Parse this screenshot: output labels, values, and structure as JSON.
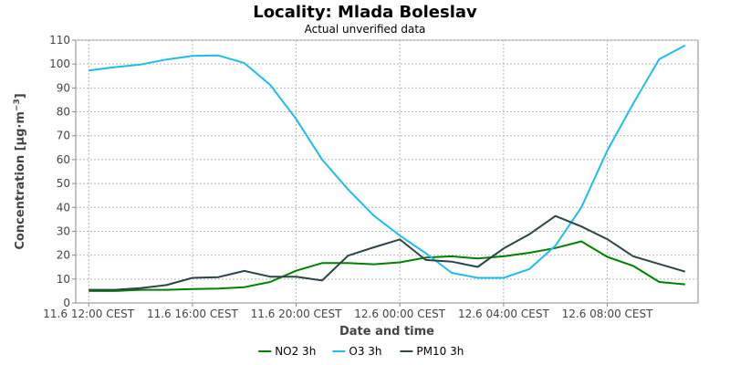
{
  "chart_data": {
    "type": "line",
    "title": "Locality: Mlada Boleslav",
    "subtitle": "Actual unverified data",
    "xlabel": "Date and time",
    "ylabel_main": "Concentration [µg·m",
    "ylabel_sup": "−3",
    "ylabel_end": "]",
    "ylim": [
      0,
      110
    ],
    "yticks": [
      0,
      10,
      20,
      30,
      40,
      50,
      60,
      70,
      80,
      90,
      100,
      110
    ],
    "xlim": [
      11.5,
      35.5
    ],
    "x_hours": [
      12,
      13,
      14,
      15,
      16,
      17,
      18,
      19,
      20,
      21,
      22,
      23,
      24,
      25,
      26,
      27,
      28,
      29,
      30,
      31,
      32,
      33,
      34,
      35
    ],
    "xticks": [
      {
        "hour": 12,
        "label": "11.6 12:00 CEST"
      },
      {
        "hour": 16,
        "label": "11.6 16:00 CEST"
      },
      {
        "hour": 20,
        "label": "11.6 20:00 CEST"
      },
      {
        "hour": 24,
        "label": "12.6 00:00 CEST"
      },
      {
        "hour": 28,
        "label": "12.6 04:00 CEST"
      },
      {
        "hour": 32,
        "label": "12.6 08:00 CEST"
      }
    ],
    "grid": true,
    "legend_position": "bottom",
    "series": [
      {
        "name": "NO2 3h",
        "color": "#008000",
        "values": [
          5.0,
          5.0,
          5.5,
          5.5,
          5.8,
          6.0,
          6.6,
          8.8,
          13.5,
          16.7,
          16.7,
          16.2,
          17.0,
          19.0,
          19.5,
          18.6,
          19.5,
          21.0,
          23.0,
          25.8,
          19.3,
          15.5,
          8.8,
          7.8
        ]
      },
      {
        "name": "O3 3h",
        "color": "#1ebdf0",
        "values": [
          97.3,
          98.7,
          99.8,
          101.9,
          103.4,
          103.6,
          100.4,
          91.3,
          77.0,
          60.0,
          47.5,
          36.5,
          28.2,
          20.8,
          12.6,
          10.5,
          10.5,
          14.2,
          24.0,
          40.0,
          63.8,
          83.5,
          102.0,
          107.8
        ]
      },
      {
        "name": "PM10 3h",
        "color": "#2b4548",
        "values": [
          5.5,
          5.5,
          6.2,
          7.5,
          10.5,
          10.8,
          13.4,
          11.0,
          11.0,
          9.4,
          19.8,
          23.3,
          26.6,
          18.0,
          17.3,
          15.1,
          22.8,
          28.8,
          36.4,
          32.0,
          26.7,
          19.5,
          16.3,
          13.1
        ]
      }
    ]
  }
}
